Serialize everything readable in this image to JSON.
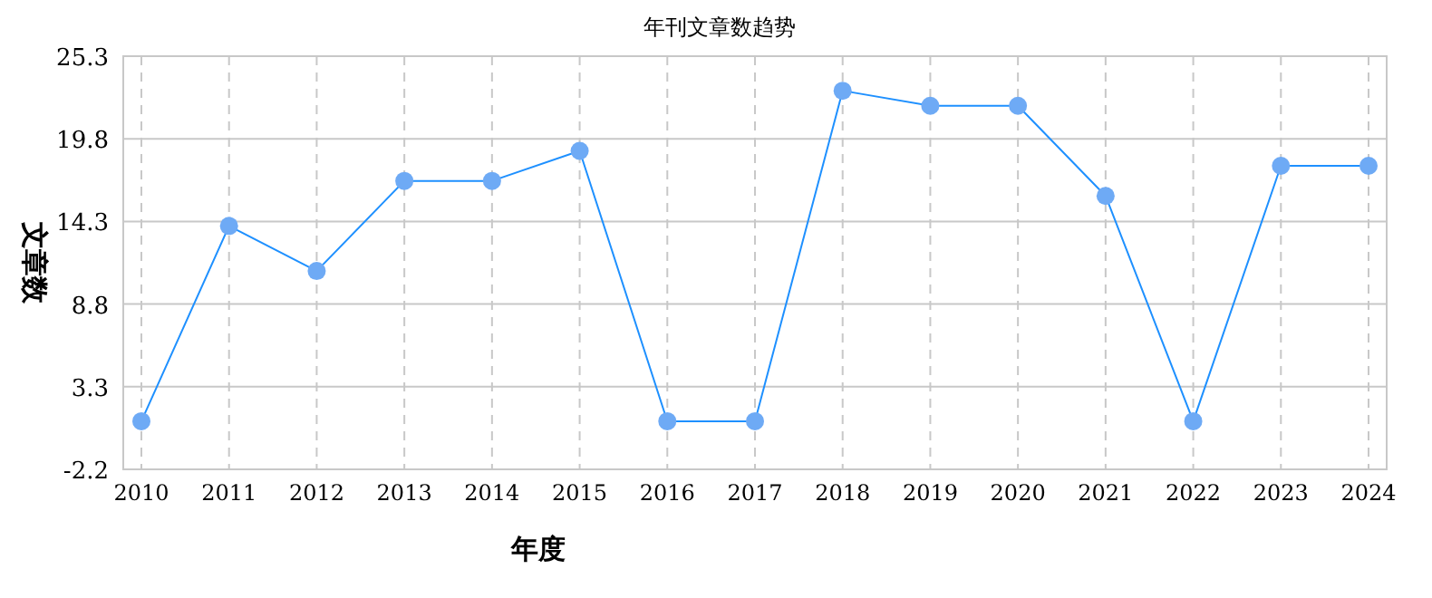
{
  "chart_data": {
    "type": "line",
    "title": "年刊文章数趋势",
    "xlabel": "年度",
    "ylabel": "文章数",
    "categories": [
      "2010",
      "2011",
      "2012",
      "2013",
      "2014",
      "2015",
      "2016",
      "2017",
      "2018",
      "2019",
      "2020",
      "2021",
      "2022",
      "2023",
      "2024"
    ],
    "series": [
      {
        "color": "#1e90ff",
        "values": [
          1,
          14,
          11,
          17,
          17,
          19,
          1,
          1,
          23,
          22,
          22,
          16,
          1,
          18,
          18
        ]
      }
    ],
    "ylim": [
      -2.2,
      25.3
    ],
    "yticks": [
      -2.2,
      3.3,
      8.8,
      14.3,
      19.8,
      25.3
    ],
    "grid": true,
    "marker": "circle",
    "line_style": "solid"
  }
}
